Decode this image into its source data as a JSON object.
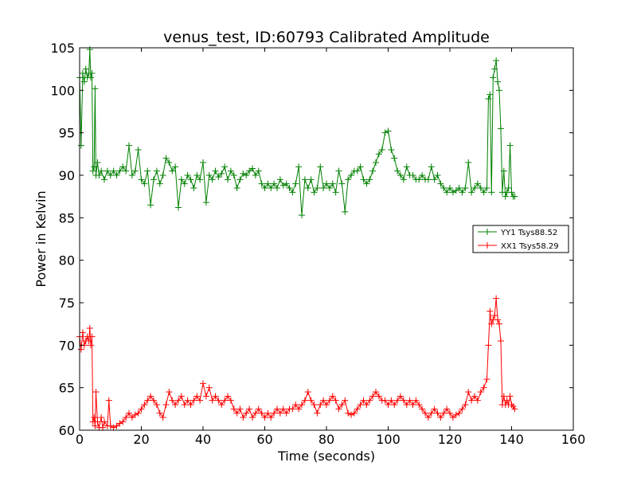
{
  "chart_data": {
    "type": "line",
    "title": "venus_test, ID:60793 Calibrated Amplitude",
    "xlabel": "Time (seconds)",
    "ylabel": "Power in Kelvin",
    "xlim": [
      0,
      160
    ],
    "ylim": [
      60,
      105
    ],
    "xticks": [
      "0",
      "20",
      "40",
      "60",
      "80",
      "100",
      "120",
      "140",
      "160"
    ],
    "yticks": [
      "60",
      "65",
      "70",
      "75",
      "80",
      "85",
      "90",
      "95",
      "100",
      "105"
    ],
    "grid": false,
    "legend_position": "center-right",
    "series": [
      {
        "name": "YY1 Tsys88.52",
        "color": "#008000",
        "marker": "+",
        "points": [
          [
            0.0,
            101.5
          ],
          [
            0.5,
            93.5
          ],
          [
            1.0,
            102.0
          ],
          [
            1.5,
            101.0
          ],
          [
            2.0,
            102.5
          ],
          [
            2.5,
            101.5
          ],
          [
            3.0,
            102.0
          ],
          [
            3.3,
            104.8
          ],
          [
            3.6,
            101.5
          ],
          [
            4.0,
            102.0
          ],
          [
            4.3,
            90.5
          ],
          [
            4.7,
            91.0
          ],
          [
            5.0,
            100.2
          ],
          [
            5.3,
            90.0
          ],
          [
            5.8,
            91.5
          ],
          [
            6.3,
            90.0
          ],
          [
            7.0,
            90.5
          ],
          [
            8.0,
            89.5
          ],
          [
            9.0,
            90.5
          ],
          [
            10,
            90.0
          ],
          [
            11,
            90.5
          ],
          [
            12,
            90.0
          ],
          [
            13,
            90.5
          ],
          [
            14,
            91.0
          ],
          [
            15,
            90.5
          ],
          [
            16,
            93.5
          ],
          [
            17,
            90.0
          ],
          [
            18,
            90.5
          ],
          [
            19,
            93.0
          ],
          [
            20,
            89.5
          ],
          [
            21,
            89.0
          ],
          [
            22,
            90.5
          ],
          [
            23,
            86.5
          ],
          [
            24,
            89.5
          ],
          [
            25,
            90.5
          ],
          [
            26,
            89.0
          ],
          [
            27,
            90.0
          ],
          [
            28,
            92.0
          ],
          [
            29,
            91.5
          ],
          [
            30,
            90.5
          ],
          [
            31,
            91.0
          ],
          [
            32,
            86.2
          ],
          [
            33,
            89.5
          ],
          [
            34,
            89.0
          ],
          [
            35,
            90.0
          ],
          [
            36,
            89.5
          ],
          [
            37,
            88.5
          ],
          [
            38,
            90.0
          ],
          [
            39,
            89.5
          ],
          [
            40,
            91.5
          ],
          [
            41,
            86.8
          ],
          [
            42,
            90.0
          ],
          [
            43,
            89.5
          ],
          [
            44,
            90.5
          ],
          [
            45,
            89.8
          ],
          [
            46,
            90.2
          ],
          [
            47,
            91.0
          ],
          [
            48,
            89.5
          ],
          [
            49,
            90.5
          ],
          [
            50,
            90.0
          ],
          [
            51,
            88.5
          ],
          [
            52,
            89.5
          ],
          [
            53,
            90.2
          ],
          [
            54,
            90.0
          ],
          [
            55,
            90.5
          ],
          [
            56,
            90.8
          ],
          [
            57,
            90.0
          ],
          [
            58,
            90.5
          ],
          [
            59,
            89.0
          ],
          [
            60,
            88.5
          ],
          [
            61,
            89.0
          ],
          [
            62,
            88.5
          ],
          [
            63,
            89.0
          ],
          [
            64,
            88.5
          ],
          [
            65,
            89.5
          ],
          [
            66,
            88.8
          ],
          [
            67,
            89.0
          ],
          [
            68,
            88.5
          ],
          [
            69,
            88.0
          ],
          [
            70,
            89.0
          ],
          [
            71,
            91.0
          ],
          [
            72,
            85.3
          ],
          [
            73,
            89.5
          ],
          [
            74,
            88.5
          ],
          [
            75,
            89.5
          ],
          [
            76,
            88.0
          ],
          [
            77,
            88.5
          ],
          [
            78,
            91.0
          ],
          [
            79,
            88.5
          ],
          [
            80,
            89.0
          ],
          [
            81,
            88.5
          ],
          [
            82,
            89.0
          ],
          [
            83,
            88.0
          ],
          [
            84,
            90.5
          ],
          [
            85,
            89.0
          ],
          [
            86,
            85.7
          ],
          [
            87,
            89.5
          ],
          [
            88,
            90.0
          ],
          [
            89,
            90.5
          ],
          [
            90,
            90.5
          ],
          [
            91,
            91.0
          ],
          [
            92,
            89.5
          ],
          [
            93,
            89.0
          ],
          [
            94,
            89.5
          ],
          [
            95,
            90.5
          ],
          [
            96,
            91.5
          ],
          [
            97,
            92.5
          ],
          [
            98,
            93.0
          ],
          [
            99,
            95.0
          ],
          [
            100,
            95.2
          ],
          [
            101,
            93.0
          ],
          [
            102,
            92.0
          ],
          [
            103,
            90.5
          ],
          [
            104,
            90.0
          ],
          [
            105,
            89.5
          ],
          [
            106,
            91.0
          ],
          [
            107,
            90.0
          ],
          [
            108,
            90.0
          ],
          [
            109,
            89.5
          ],
          [
            110,
            89.5
          ],
          [
            111,
            90.0
          ],
          [
            112,
            89.5
          ],
          [
            113,
            89.5
          ],
          [
            114,
            91.0
          ],
          [
            115,
            89.5
          ],
          [
            116,
            90.0
          ],
          [
            117,
            89.0
          ],
          [
            118,
            88.5
          ],
          [
            119,
            88.0
          ],
          [
            120,
            88.5
          ],
          [
            121,
            88.0
          ],
          [
            122,
            88.2
          ],
          [
            123,
            88.5
          ],
          [
            124,
            88.0
          ],
          [
            125,
            88.5
          ],
          [
            126,
            91.5
          ],
          [
            127,
            88.0
          ],
          [
            128,
            88.5
          ],
          [
            129,
            89.0
          ],
          [
            130,
            88.5
          ],
          [
            131,
            88.0
          ],
          [
            132,
            88.5
          ],
          [
            132.5,
            99.0
          ],
          [
            133,
            99.5
          ],
          [
            133.5,
            88.0
          ],
          [
            134,
            101.5
          ],
          [
            134.5,
            102.5
          ],
          [
            135,
            103.5
          ],
          [
            135.5,
            101.0
          ],
          [
            136,
            100.0
          ],
          [
            136.5,
            95.5
          ],
          [
            137,
            88.0
          ],
          [
            137.5,
            90.5
          ],
          [
            138,
            87.5
          ],
          [
            138.5,
            88.0
          ],
          [
            139,
            88.5
          ],
          [
            139.5,
            93.5
          ],
          [
            140,
            88.0
          ],
          [
            140.5,
            87.5
          ],
          [
            141,
            87.5
          ]
        ]
      },
      {
        "name": "XX1 Tsys58.29",
        "color": "#ff0000",
        "marker": "+",
        "points": [
          [
            0.0,
            71.0
          ],
          [
            0.5,
            69.5
          ],
          [
            1.0,
            71.5
          ],
          [
            1.5,
            70.0
          ],
          [
            2.0,
            70.5
          ],
          [
            2.5,
            71.0
          ],
          [
            3.0,
            70.5
          ],
          [
            3.3,
            72.0
          ],
          [
            3.6,
            70.0
          ],
          [
            4.0,
            71.0
          ],
          [
            4.3,
            61.0
          ],
          [
            4.7,
            61.5
          ],
          [
            5.0,
            60.5
          ],
          [
            5.3,
            64.5
          ],
          [
            5.8,
            61.0
          ],
          [
            6.3,
            60.3
          ],
          [
            7.0,
            61.5
          ],
          [
            7.5,
            60.3
          ],
          [
            8.0,
            61.0
          ],
          [
            9.0,
            60.5
          ],
          [
            9.5,
            63.5
          ],
          [
            10,
            60.5
          ],
          [
            11,
            60.3
          ],
          [
            12,
            60.5
          ],
          [
            13,
            60.8
          ],
          [
            14,
            61.0
          ],
          [
            15,
            61.5
          ],
          [
            16,
            62.0
          ],
          [
            17,
            61.5
          ],
          [
            18,
            61.8
          ],
          [
            19,
            62.0
          ],
          [
            20,
            62.5
          ],
          [
            21,
            63.0
          ],
          [
            22,
            63.5
          ],
          [
            23,
            64.0
          ],
          [
            24,
            63.5
          ],
          [
            25,
            63.0
          ],
          [
            26,
            62.0
          ],
          [
            27,
            61.5
          ],
          [
            28,
            63.0
          ],
          [
            29,
            64.5
          ],
          [
            30,
            63.5
          ],
          [
            31,
            63.0
          ],
          [
            32,
            63.5
          ],
          [
            33,
            64.0
          ],
          [
            34,
            63.0
          ],
          [
            35,
            63.5
          ],
          [
            36,
            63.0
          ],
          [
            37,
            63.5
          ],
          [
            38,
            64.0
          ],
          [
            39,
            63.5
          ],
          [
            40,
            65.5
          ],
          [
            41,
            64.0
          ],
          [
            42,
            65.0
          ],
          [
            43,
            63.5
          ],
          [
            44,
            64.0
          ],
          [
            45,
            63.5
          ],
          [
            46,
            63.0
          ],
          [
            47,
            63.5
          ],
          [
            48,
            64.0
          ],
          [
            49,
            63.5
          ],
          [
            50,
            62.5
          ],
          [
            51,
            62.0
          ],
          [
            52,
            62.5
          ],
          [
            53,
            61.5
          ],
          [
            54,
            62.0
          ],
          [
            55,
            62.5
          ],
          [
            56,
            61.5
          ],
          [
            57,
            62.0
          ],
          [
            58,
            62.5
          ],
          [
            59,
            62.0
          ],
          [
            60,
            61.5
          ],
          [
            61,
            62.0
          ],
          [
            62,
            61.5
          ],
          [
            63,
            62.0
          ],
          [
            64,
            62.5
          ],
          [
            65,
            62.0
          ],
          [
            66,
            62.5
          ],
          [
            67,
            62.0
          ],
          [
            68,
            62.5
          ],
          [
            69,
            62.5
          ],
          [
            70,
            63.0
          ],
          [
            71,
            62.5
          ],
          [
            72,
            63.0
          ],
          [
            73,
            63.5
          ],
          [
            74,
            64.5
          ],
          [
            75,
            63.5
          ],
          [
            76,
            63.0
          ],
          [
            77,
            62.0
          ],
          [
            78,
            63.0
          ],
          [
            79,
            63.5
          ],
          [
            80,
            63.0
          ],
          [
            81,
            63.5
          ],
          [
            82,
            64.0
          ],
          [
            83,
            63.5
          ],
          [
            84,
            62.5
          ],
          [
            85,
            63.0
          ],
          [
            86,
            63.5
          ],
          [
            87,
            62.0
          ],
          [
            88,
            61.8
          ],
          [
            89,
            62.0
          ],
          [
            90,
            62.5
          ],
          [
            91,
            63.0
          ],
          [
            92,
            63.5
          ],
          [
            93,
            63.0
          ],
          [
            94,
            63.5
          ],
          [
            95,
            64.0
          ],
          [
            96,
            64.5
          ],
          [
            97,
            64.0
          ],
          [
            98,
            63.5
          ],
          [
            99,
            63.5
          ],
          [
            100,
            63.0
          ],
          [
            101,
            63.5
          ],
          [
            102,
            63.0
          ],
          [
            103,
            63.5
          ],
          [
            104,
            64.0
          ],
          [
            105,
            63.5
          ],
          [
            106,
            63.0
          ],
          [
            107,
            63.5
          ],
          [
            108,
            63.0
          ],
          [
            109,
            63.5
          ],
          [
            110,
            63.0
          ],
          [
            111,
            62.5
          ],
          [
            112,
            62.0
          ],
          [
            113,
            61.5
          ],
          [
            114,
            62.0
          ],
          [
            115,
            62.5
          ],
          [
            116,
            62.0
          ],
          [
            117,
            61.5
          ],
          [
            118,
            62.0
          ],
          [
            119,
            62.5
          ],
          [
            120,
            62.0
          ],
          [
            121,
            61.5
          ],
          [
            122,
            61.8
          ],
          [
            123,
            62.0
          ],
          [
            124,
            62.5
          ],
          [
            125,
            63.0
          ],
          [
            126,
            64.5
          ],
          [
            127,
            63.5
          ],
          [
            128,
            64.0
          ],
          [
            129,
            63.5
          ],
          [
            130,
            64.5
          ],
          [
            131,
            65.0
          ],
          [
            132,
            66.0
          ],
          [
            132.5,
            70.0
          ],
          [
            133,
            74.0
          ],
          [
            133.5,
            72.5
          ],
          [
            134,
            73.0
          ],
          [
            134.5,
            73.5
          ],
          [
            135,
            75.5
          ],
          [
            135.5,
            73.0
          ],
          [
            136,
            72.5
          ],
          [
            136.5,
            70.5
          ],
          [
            137,
            63.0
          ],
          [
            137.5,
            64.0
          ],
          [
            138,
            63.0
          ],
          [
            138.5,
            63.5
          ],
          [
            139,
            63.0
          ],
          [
            139.5,
            64.0
          ],
          [
            140,
            63.0
          ],
          [
            140.5,
            62.8
          ],
          [
            141,
            62.5
          ]
        ]
      }
    ]
  }
}
